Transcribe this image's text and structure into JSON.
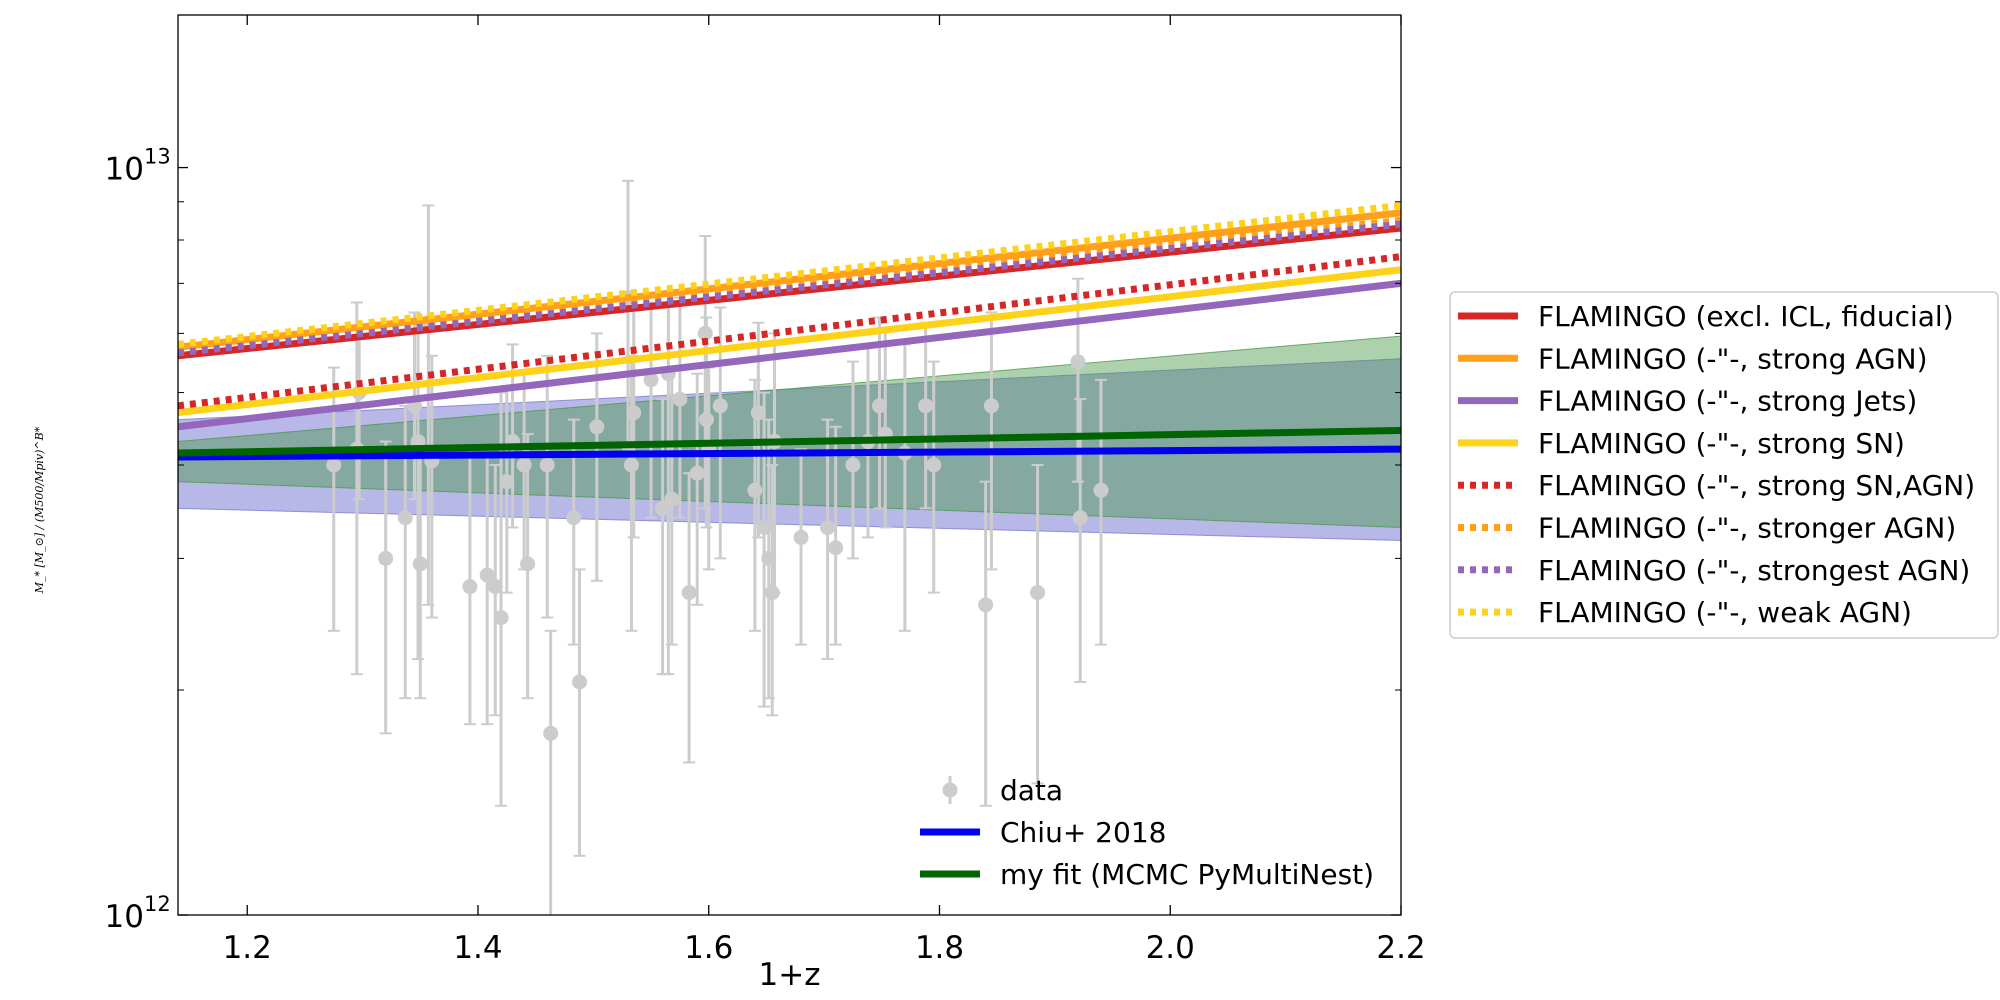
{
  "chart_data": {
    "type": "scatter",
    "xlabel": "1+z",
    "ylabel": "M_* [M_⊙] / (M500/Mpiv)^B*",
    "xlim": [
      1.14,
      2.2
    ],
    "ylim": [
      1000000000000.0,
      16000000000000.0
    ],
    "yscale": "log",
    "grid": false,
    "x_ticks": [
      {
        "value": 1.2,
        "label": "1.2"
      },
      {
        "value": 1.4,
        "label": "1.4"
      },
      {
        "value": 1.6,
        "label": "1.6"
      },
      {
        "value": 1.8,
        "label": "1.8"
      },
      {
        "value": 2.0,
        "label": "2.0"
      },
      {
        "value": 2.2,
        "label": "2.2"
      }
    ],
    "y_ticks": [
      {
        "value": 1000000000000.0,
        "label": "10",
        "exp": "12"
      },
      {
        "value": 10000000000000.0,
        "label": "10",
        "exp": "13"
      }
    ],
    "bands": [
      {
        "name": "Chiu+ 2018 band",
        "color": "#7b7bd6",
        "opacity": 0.55,
        "x": [
          1.14,
          2.2
        ],
        "lower": [
          3500000000000.0,
          3170000000000.0
        ],
        "upper": [
          4600000000000.0,
          5550000000000.0
        ]
      },
      {
        "name": "my fit band",
        "color": "#4a9a4a",
        "opacity": 0.45,
        "x": [
          1.14,
          2.2
        ],
        "lower": [
          3800000000000.0,
          3300000000000.0
        ],
        "upper": [
          4300000000000.0,
          5950000000000.0
        ]
      }
    ],
    "series": [
      {
        "name": "FLAMINGO (excl. ICL, fiducial)",
        "color": "#d62728",
        "style": "solid",
        "x": [
          1.14,
          2.2
        ],
        "y": [
          5600000000000.0,
          8300000000000.0
        ]
      },
      {
        "name": "FLAMINGO (-\"-, strong AGN)",
        "color": "#ff9f1a",
        "style": "solid",
        "x": [
          1.14,
          2.2
        ],
        "y": [
          5750000000000.0,
          8700000000000.0
        ]
      },
      {
        "name": "FLAMINGO (-\"-, strong Jets)",
        "color": "#9467bd",
        "style": "solid",
        "x": [
          1.14,
          2.2
        ],
        "y": [
          4500000000000.0,
          7000000000000.0
        ]
      },
      {
        "name": "FLAMINGO (-\"-, strong SN)",
        "color": "#ffd21a",
        "style": "solid",
        "x": [
          1.14,
          2.2
        ],
        "y": [
          4700000000000.0,
          7300000000000.0
        ]
      },
      {
        "name": "FLAMINGO (-\"-, strong SN,AGN)",
        "color": "#d62728",
        "style": "dotted",
        "x": [
          1.14,
          2.2
        ],
        "y": [
          4800000000000.0,
          7600000000000.0
        ]
      },
      {
        "name": "FLAMINGO (-\"-, stronger AGN)",
        "color": "#ff9f1a",
        "style": "dotted",
        "x": [
          1.14,
          2.2
        ],
        "y": [
          5700000000000.0,
          8500000000000.0
        ]
      },
      {
        "name": "FLAMINGO (-\"-, strongest AGN)",
        "color": "#9467bd",
        "style": "dotted",
        "x": [
          1.14,
          2.2
        ],
        "y": [
          5650000000000.0,
          8400000000000.0
        ]
      },
      {
        "name": "FLAMINGO (-\"-, weak AGN)",
        "color": "#ffd21a",
        "style": "dotted",
        "x": [
          1.14,
          2.2
        ],
        "y": [
          5800000000000.0,
          8900000000000.0
        ]
      },
      {
        "name": "Chiu+ 2018",
        "color": "#0000ee",
        "style": "solid",
        "x": [
          1.14,
          2.2
        ],
        "y": [
          4100000000000.0,
          4200000000000.0
        ]
      },
      {
        "name": "my fit (MCMC PyMultiNest)",
        "color": "#006400",
        "style": "solid",
        "x": [
          1.14,
          2.2
        ],
        "y": [
          4150000000000.0,
          4450000000000.0
        ]
      }
    ],
    "data_points": {
      "name": "data",
      "color": "#cccccc",
      "points": [
        {
          "x": 1.275,
          "y": 4000000000000.0,
          "lo": 2400000000000.0,
          "hi": 5400000000000.0
        },
        {
          "x": 1.295,
          "y": 4200000000000.0,
          "lo": 2100000000000.0,
          "hi": 6600000000000.0
        },
        {
          "x": 1.297,
          "y": 5000000000000.0,
          "lo": 3600000000000.0,
          "hi": 6100000000000.0
        },
        {
          "x": 1.32,
          "y": 3000000000000.0,
          "lo": 1750000000000.0,
          "hi": 4300000000000.0
        },
        {
          "x": 1.337,
          "y": 3400000000000.0,
          "lo": 1950000000000.0,
          "hi": 4800000000000.0
        },
        {
          "x": 1.345,
          "y": 4800000000000.0,
          "lo": 3600000000000.0,
          "hi": 6400000000000.0
        },
        {
          "x": 1.348,
          "y": 4300000000000.0,
          "lo": 2200000000000.0,
          "hi": 6200000000000.0
        },
        {
          "x": 1.35,
          "y": 2950000000000.0,
          "lo": 1950000000000.0,
          "hi": 4100000000000.0
        },
        {
          "x": 1.357,
          "y": 6200000000000.0,
          "lo": 2600000000000.0,
          "hi": 8900000000000.0
        },
        {
          "x": 1.36,
          "y": 4050000000000.0,
          "lo": 2500000000000.0,
          "hi": 5600000000000.0
        },
        {
          "x": 1.393,
          "y": 2750000000000.0,
          "lo": 1800000000000.0,
          "hi": 4200000000000.0
        },
        {
          "x": 1.408,
          "y": 2850000000000.0,
          "lo": 1800000000000.0,
          "hi": 4100000000000.0
        },
        {
          "x": 1.415,
          "y": 2750000000000.0,
          "lo": 1850000000000.0,
          "hi": 4000000000000.0
        },
        {
          "x": 1.42,
          "y": 2500000000000.0,
          "lo": 1400000000000.0,
          "hi": 5000000000000.0
        },
        {
          "x": 1.425,
          "y": 3800000000000.0,
          "lo": 2700000000000.0,
          "hi": 5100000000000.0
        },
        {
          "x": 1.43,
          "y": 4300000000000.0,
          "lo": 3300000000000.0,
          "hi": 5800000000000.0
        },
        {
          "x": 1.44,
          "y": 4000000000000.0,
          "lo": 2900000000000.0,
          "hi": 5300000000000.0
        },
        {
          "x": 1.443,
          "y": 2950000000000.0,
          "lo": 1950000000000.0,
          "hi": 4400000000000.0
        },
        {
          "x": 1.46,
          "y": 4000000000000.0,
          "lo": 2500000000000.0,
          "hi": 5600000000000.0
        },
        {
          "x": 1.463,
          "y": 1750000000000.0,
          "lo": 950000000000.0,
          "hi": 2400000000000.0
        },
        {
          "x": 1.483,
          "y": 3400000000000.0,
          "lo": 2300000000000.0,
          "hi": 4600000000000.0
        },
        {
          "x": 1.488,
          "y": 2050000000000.0,
          "lo": 1200000000000.0,
          "hi": 2900000000000.0
        },
        {
          "x": 1.503,
          "y": 4500000000000.0,
          "lo": 2800000000000.0,
          "hi": 6000000000000.0
        },
        {
          "x": 1.53,
          "y": 6700000000000.0,
          "lo": 4200000000000.0,
          "hi": 9600000000000.0
        },
        {
          "x": 1.533,
          "y": 4000000000000.0,
          "lo": 2400000000000.0,
          "hi": 5600000000000.0
        },
        {
          "x": 1.535,
          "y": 4700000000000.0,
          "lo": 3200000000000.0,
          "hi": 6500000000000.0
        },
        {
          "x": 1.55,
          "y": 5200000000000.0,
          "lo": 3400000000000.0,
          "hi": 6600000000000.0
        },
        {
          "x": 1.56,
          "y": 3500000000000.0,
          "lo": 2100000000000.0,
          "hi": 4900000000000.0
        },
        {
          "x": 1.565,
          "y": 5300000000000.0,
          "lo": 2100000000000.0,
          "hi": 6800000000000.0
        },
        {
          "x": 1.568,
          "y": 3600000000000.0,
          "lo": 2300000000000.0,
          "hi": 5400000000000.0
        },
        {
          "x": 1.575,
          "y": 4900000000000.0,
          "lo": 3400000000000.0,
          "hi": 6700000000000.0
        },
        {
          "x": 1.583,
          "y": 2700000000000.0,
          "lo": 1600000000000.0,
          "hi": 3900000000000.0
        },
        {
          "x": 1.59,
          "y": 3900000000000.0,
          "lo": 2600000000000.0,
          "hi": 5300000000000.0
        },
        {
          "x": 1.597,
          "y": 6000000000000.0,
          "lo": 3500000000000.0,
          "hi": 8100000000000.0
        },
        {
          "x": 1.598,
          "y": 4600000000000.0,
          "lo": 3300000000000.0,
          "hi": 6300000000000.0
        },
        {
          "x": 1.6,
          "y": 4200000000000.0,
          "lo": 2900000000000.0,
          "hi": 5400000000000.0
        },
        {
          "x": 1.61,
          "y": 4800000000000.0,
          "lo": 3000000000000.0,
          "hi": 6500000000000.0
        },
        {
          "x": 1.64,
          "y": 3700000000000.0,
          "lo": 2400000000000.0,
          "hi": 5200000000000.0
        },
        {
          "x": 1.643,
          "y": 4700000000000.0,
          "lo": 3200000000000.0,
          "hi": 6200000000000.0
        },
        {
          "x": 1.648,
          "y": 3300000000000.0,
          "lo": 1900000000000.0,
          "hi": 5000000000000.0
        },
        {
          "x": 1.652,
          "y": 3000000000000.0,
          "lo": 1950000000000.0,
          "hi": 4600000000000.0
        },
        {
          "x": 1.655,
          "y": 2700000000000.0,
          "lo": 1850000000000.0,
          "hi": 4000000000000.0
        },
        {
          "x": 1.657,
          "y": 4300000000000.0,
          "lo": 2700000000000.0,
          "hi": 6000000000000.0
        },
        {
          "x": 1.68,
          "y": 3200000000000.0,
          "lo": 2300000000000.0,
          "hi": 4200000000000.0
        },
        {
          "x": 1.703,
          "y": 3300000000000.0,
          "lo": 2200000000000.0,
          "hi": 4600000000000.0
        },
        {
          "x": 1.71,
          "y": 3100000000000.0,
          "lo": 2300000000000.0,
          "hi": 4500000000000.0
        },
        {
          "x": 1.725,
          "y": 4000000000000.0,
          "lo": 3000000000000.0,
          "hi": 5500000000000.0
        },
        {
          "x": 1.738,
          "y": 4300000000000.0,
          "lo": 3200000000000.0,
          "hi": 5800000000000.0
        },
        {
          "x": 1.748,
          "y": 4800000000000.0,
          "lo": 3500000000000.0,
          "hi": 6300000000000.0
        },
        {
          "x": 1.753,
          "y": 4400000000000.0,
          "lo": 3300000000000.0,
          "hi": 6100000000000.0
        },
        {
          "x": 1.77,
          "y": 4150000000000.0,
          "lo": 2400000000000.0,
          "hi": 5800000000000.0
        },
        {
          "x": 1.788,
          "y": 4800000000000.0,
          "lo": 3500000000000.0,
          "hi": 6200000000000.0
        },
        {
          "x": 1.795,
          "y": 4000000000000.0,
          "lo": 2700000000000.0,
          "hi": 5500000000000.0
        },
        {
          "x": 1.84,
          "y": 2600000000000.0,
          "lo": 1400000000000.0,
          "hi": 3800000000000.0
        },
        {
          "x": 1.845,
          "y": 4800000000000.0,
          "lo": 2900000000000.0,
          "hi": 6400000000000.0
        },
        {
          "x": 1.885,
          "y": 2700000000000.0,
          "lo": 1500000000000.0,
          "hi": 4000000000000.0
        },
        {
          "x": 1.92,
          "y": 5500000000000.0,
          "lo": 3800000000000.0,
          "hi": 7100000000000.0
        },
        {
          "x": 1.922,
          "y": 3400000000000.0,
          "lo": 2050000000000.0,
          "hi": 4900000000000.0
        },
        {
          "x": 1.94,
          "y": 3700000000000.0,
          "lo": 2300000000000.0,
          "hi": 5200000000000.0
        }
      ]
    },
    "legend_right": [
      {
        "label": "FLAMINGO (excl. ICL, fiducial)",
        "color": "#d62728",
        "style": "solid"
      },
      {
        "label": "FLAMINGO (-\"-, strong AGN)",
        "color": "#ff9f1a",
        "style": "solid"
      },
      {
        "label": "FLAMINGO (-\"-, strong Jets)",
        "color": "#9467bd",
        "style": "solid"
      },
      {
        "label": "FLAMINGO (-\"-, strong SN)",
        "color": "#ffd21a",
        "style": "solid"
      },
      {
        "label": "FLAMINGO (-\"-, strong SN,AGN)",
        "color": "#d62728",
        "style": "dotted"
      },
      {
        "label": "FLAMINGO (-\"-, stronger AGN)",
        "color": "#ff9f1a",
        "style": "dotted"
      },
      {
        "label": "FLAMINGO (-\"-, strongest AGN)",
        "color": "#9467bd",
        "style": "dotted"
      },
      {
        "label": "FLAMINGO (-\"-, weak AGN)",
        "color": "#ffd21a",
        "style": "dotted"
      }
    ],
    "legend_inner": [
      {
        "label": "data",
        "color": "#cccccc",
        "style": "marker"
      },
      {
        "label": "Chiu+ 2018",
        "color": "#0000ee",
        "style": "solid"
      },
      {
        "label": "my fit (MCMC PyMultiNest)",
        "color": "#006400",
        "style": "solid"
      }
    ],
    "legend_placement": [
      "outside right",
      "lower center"
    ]
  }
}
